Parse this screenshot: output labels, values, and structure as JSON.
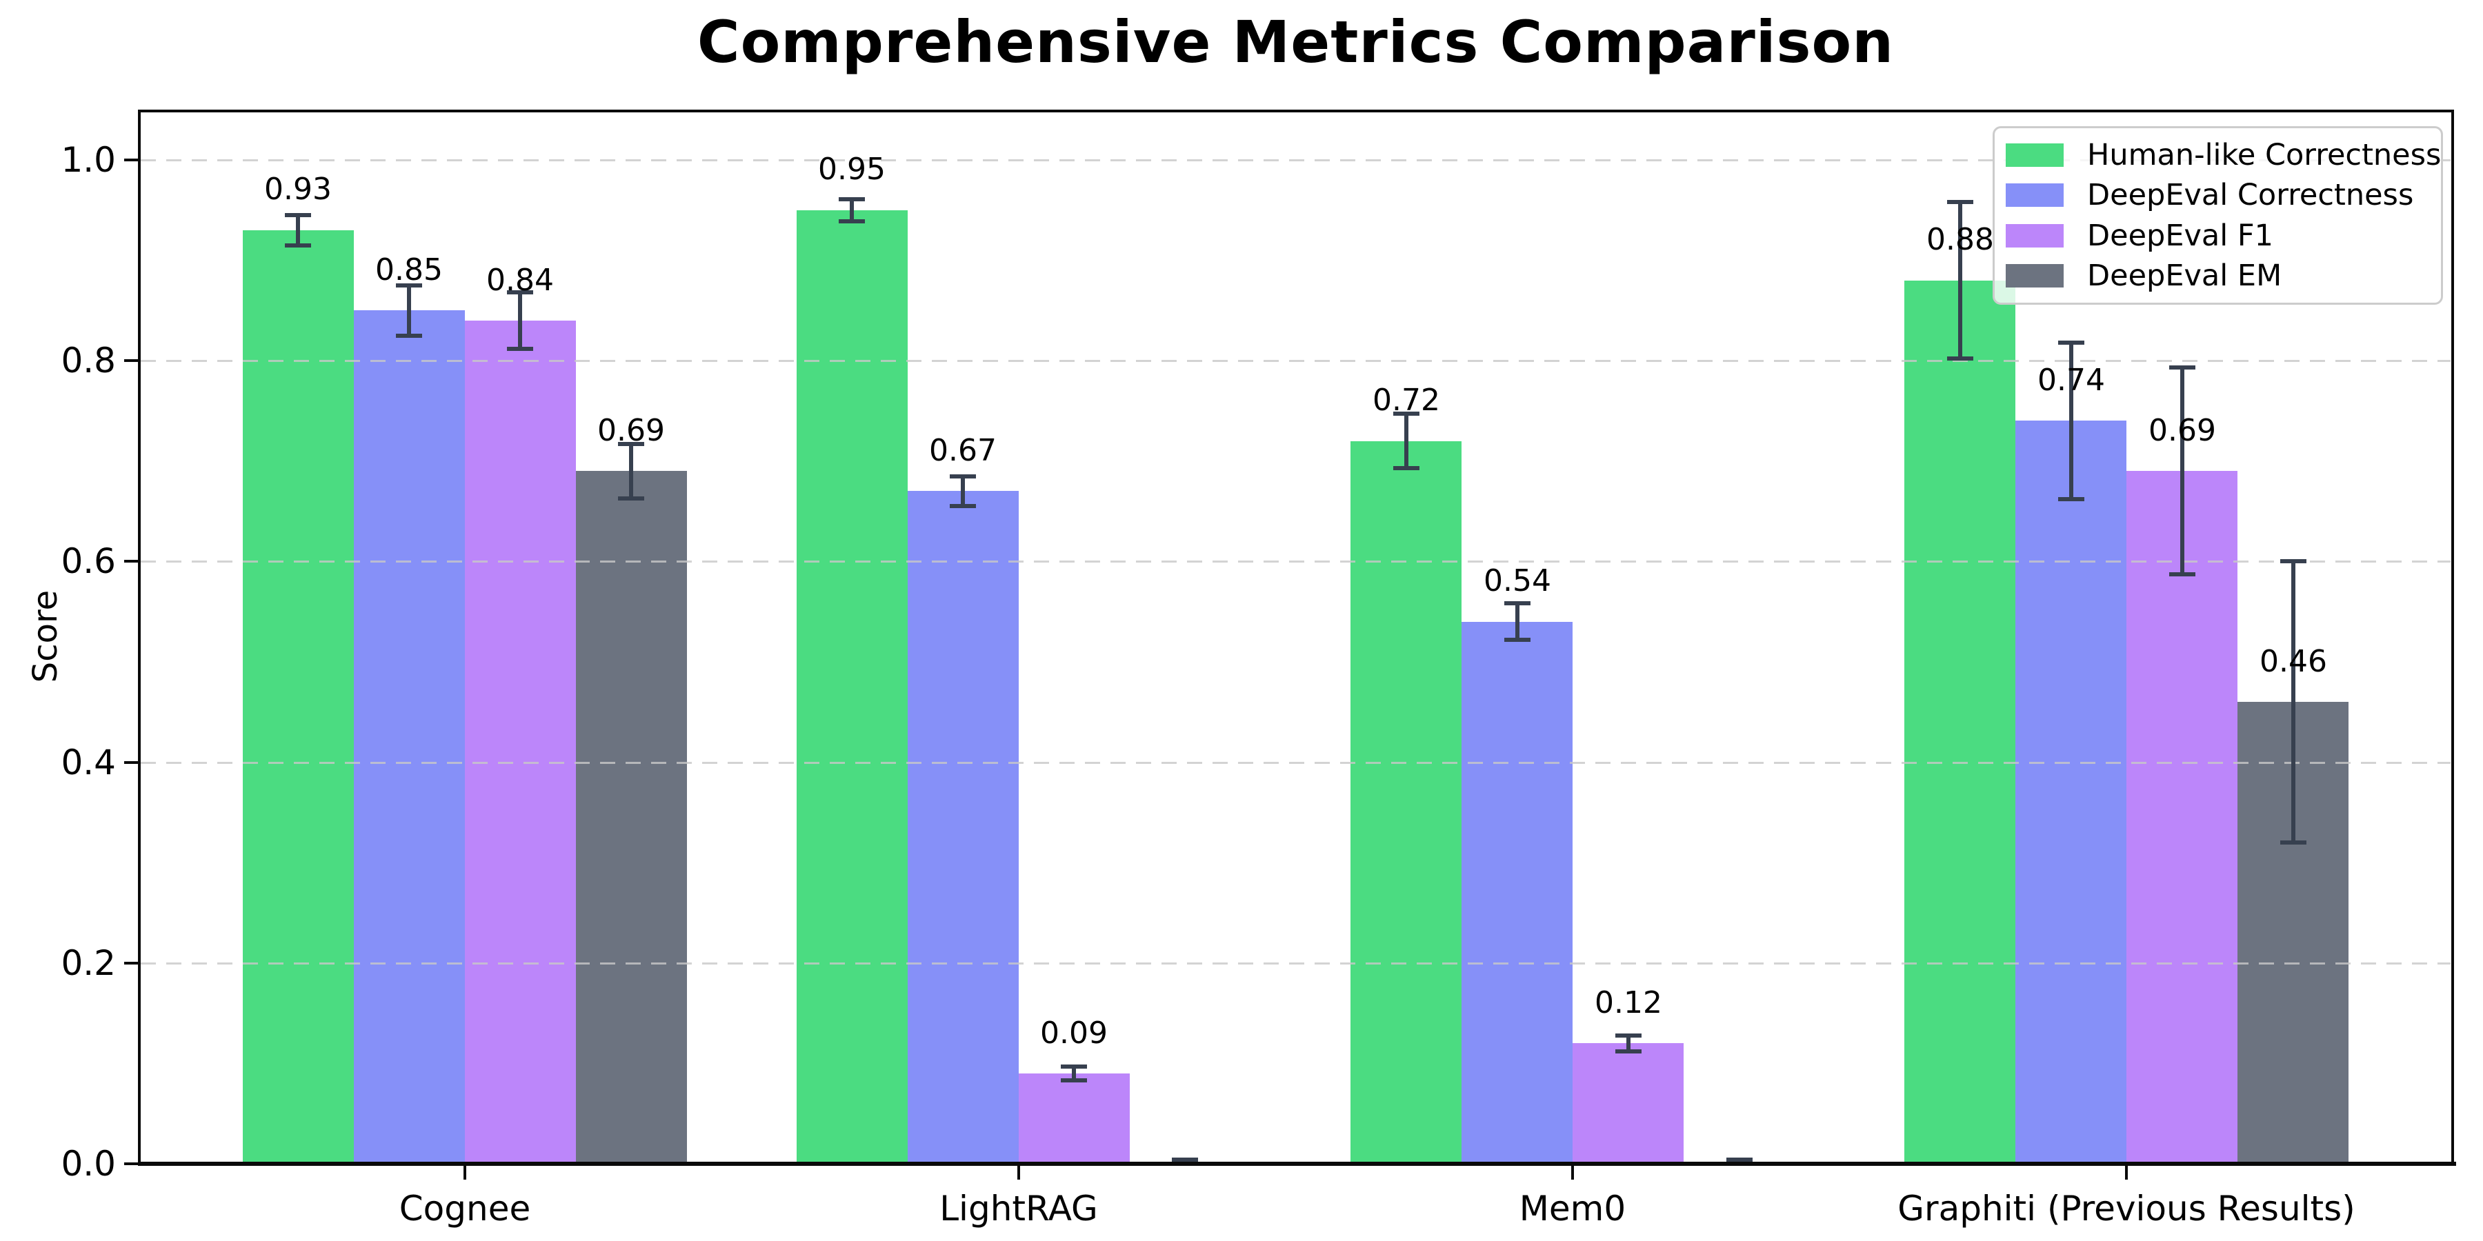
{
  "figure": {
    "title": "Comprehensive Metrics Comparison"
  },
  "chart_data": {
    "type": "bar",
    "title": "Comprehensive Metrics Comparison",
    "xlabel": "",
    "ylabel": "Score",
    "ylim": [
      0,
      1.05
    ],
    "yticks": [
      "0.0",
      "0.2",
      "0.4",
      "0.6",
      "0.8",
      "1.0"
    ],
    "grid": {
      "axis": "y",
      "style": "dashed",
      "above_bars": true
    },
    "legend_position": "upper right",
    "categories": [
      "Cognee",
      "LightRAG",
      "Mem0",
      "Graphiti (Previous Results)"
    ],
    "series": [
      {
        "name": "Human-like Correctness",
        "color": "#4bdc81",
        "values": [
          0.93,
          0.95,
          0.72,
          0.88
        ],
        "errors": [
          0.015,
          0.011,
          0.027,
          0.078
        ],
        "labels": [
          "0.93",
          "0.95",
          "0.72",
          "0.88"
        ]
      },
      {
        "name": "DeepEval Correctness",
        "color": "#8690f8",
        "values": [
          0.85,
          0.67,
          0.54,
          0.74
        ],
        "errors": [
          0.025,
          0.015,
          0.018,
          0.078
        ],
        "labels": [
          "0.85",
          "0.67",
          "0.54",
          "0.74"
        ]
      },
      {
        "name": "DeepEval F1",
        "color": "#bc86fa",
        "values": [
          0.84,
          0.09,
          0.12,
          0.69
        ],
        "errors": [
          0.028,
          0.007,
          0.008,
          0.103
        ],
        "labels": [
          "0.84",
          "0.09",
          "0.12",
          "0.69"
        ]
      },
      {
        "name": "DeepEval EM",
        "color": "#6c7380",
        "values": [
          0.69,
          0.0,
          0.0,
          0.46
        ],
        "errors": [
          0.027,
          0.004,
          0.004,
          0.14
        ],
        "labels": [
          "0.69",
          "",
          "",
          "0.46"
        ]
      }
    ],
    "error_bar_color": "#37404f"
  }
}
